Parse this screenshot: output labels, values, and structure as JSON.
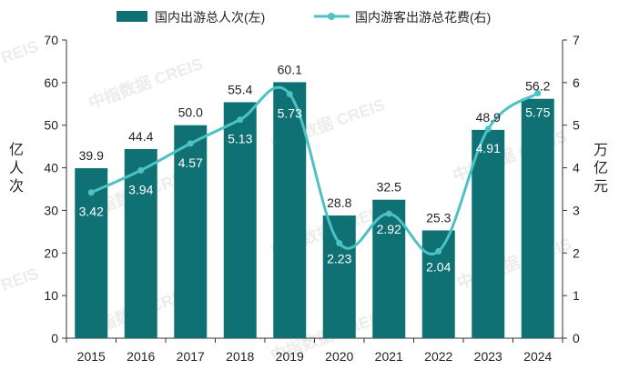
{
  "colors": {
    "bar": "#0f7173",
    "line": "#4cc1c6",
    "axis": "#333333",
    "text": "#222222",
    "watermark": "#c9c9c9"
  },
  "watermark": {
    "text": "中指数据 CREIS",
    "fragment": "REIS"
  },
  "chart_data": {
    "type": "bar",
    "categories": [
      "2015",
      "2016",
      "2017",
      "2018",
      "2019",
      "2020",
      "2021",
      "2022",
      "2023",
      "2024"
    ],
    "series": [
      {
        "name": "国内出游总人次(左)",
        "type": "bar",
        "axis": "left",
        "values": [
          39.9,
          44.4,
          50.0,
          55.4,
          60.1,
          28.8,
          32.5,
          25.3,
          48.9,
          56.2
        ],
        "labels": [
          "39.9",
          "44.4",
          "50.0",
          "55.4",
          "60.1",
          "28.8",
          "32.5",
          "25.3",
          "48.9",
          "56.2"
        ]
      },
      {
        "name": "国内游客出游总花费(右)",
        "type": "line",
        "axis": "right",
        "values": [
          3.42,
          3.94,
          4.57,
          5.13,
          5.73,
          2.23,
          2.92,
          2.04,
          4.91,
          5.75
        ],
        "labels": [
          "3.42",
          "3.94",
          "4.57",
          "5.13",
          "5.73",
          "2.23",
          "2.92",
          "2.04",
          "4.91",
          "5.75"
        ]
      }
    ],
    "y_left": {
      "label": "亿人次",
      "min": 0,
      "max": 70,
      "ticks": [
        0,
        10,
        20,
        30,
        40,
        50,
        60,
        70
      ]
    },
    "y_right": {
      "label": "万亿元",
      "min": 0,
      "max": 7,
      "ticks": [
        0,
        1,
        2,
        3,
        4,
        5,
        6,
        7
      ]
    },
    "grid": false,
    "legend_position": "top"
  }
}
